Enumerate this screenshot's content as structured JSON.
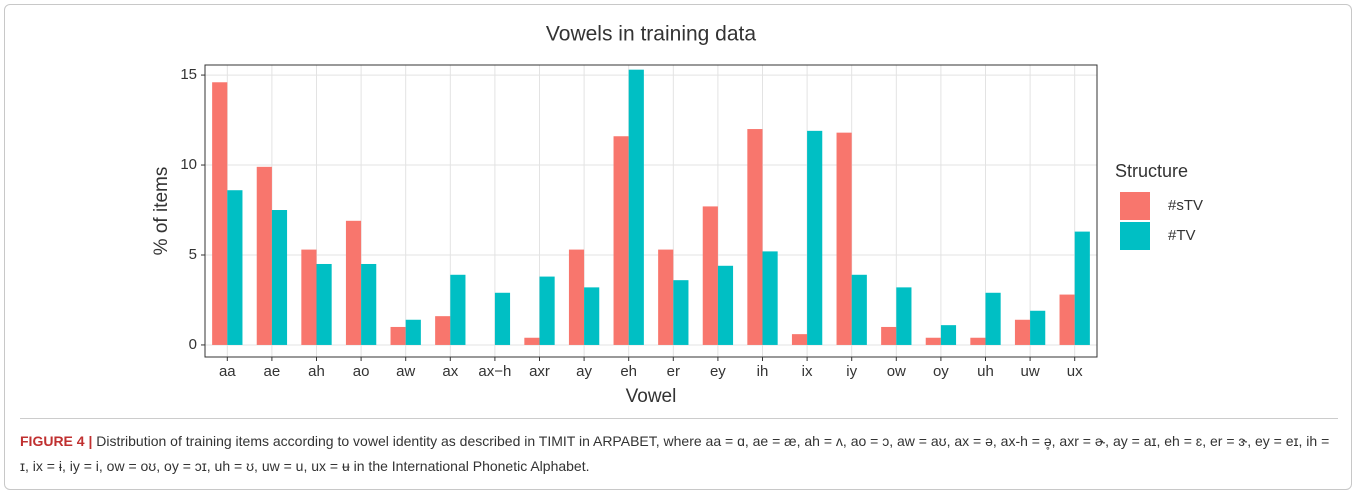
{
  "chart_data": {
    "type": "bar",
    "title": "Vowels in training data",
    "x_label": "Vowel",
    "y_label": "% of items",
    "categories": [
      "aa",
      "ae",
      "ah",
      "ao",
      "aw",
      "ax",
      "ax−h",
      "axr",
      "ay",
      "eh",
      "er",
      "ey",
      "ih",
      "ix",
      "iy",
      "ow",
      "oy",
      "uh",
      "uw",
      "ux"
    ],
    "series": [
      {
        "name": "#sTV",
        "color": "#f8766d",
        "values": [
          14.6,
          9.9,
          5.3,
          6.9,
          1.0,
          1.6,
          0,
          0.4,
          5.3,
          11.6,
          5.3,
          7.7,
          12.0,
          0.6,
          11.8,
          1.0,
          0.4,
          0.4,
          1.4,
          2.8
        ]
      },
      {
        "name": "#TV",
        "color": "#00bfc4",
        "values": [
          8.6,
          7.5,
          4.5,
          4.5,
          1.4,
          3.9,
          2.9,
          3.8,
          3.2,
          15.3,
          3.6,
          4.4,
          5.2,
          11.9,
          3.9,
          3.2,
          1.1,
          2.9,
          1.9,
          6.3
        ]
      }
    ],
    "ylim": [
      -0.67,
      15.56
    ],
    "yticks": [
      0,
      5,
      10,
      15
    ],
    "grid": true,
    "legend_title": "Structure",
    "legend_position": "right"
  },
  "caption": {
    "label": "FIGURE 4 |",
    "text": "Distribution of training items according to vowel identity as described in TIMIT in ARPABET, where aa = ɑ, ae = æ, ah = ʌ, ao = ɔ, aw = aʊ, ax = ə, ax-h = ə̥, axr = ɚ, ay = aɪ, eh = ɛ, er = ɝ, ey = eɪ, ih = ɪ, ix = ɨ, iy = i, ow = oʊ, oy = ɔɪ, uh = ʊ, uw = u, ux = ʉ in the International Phonetic Alphabet."
  }
}
